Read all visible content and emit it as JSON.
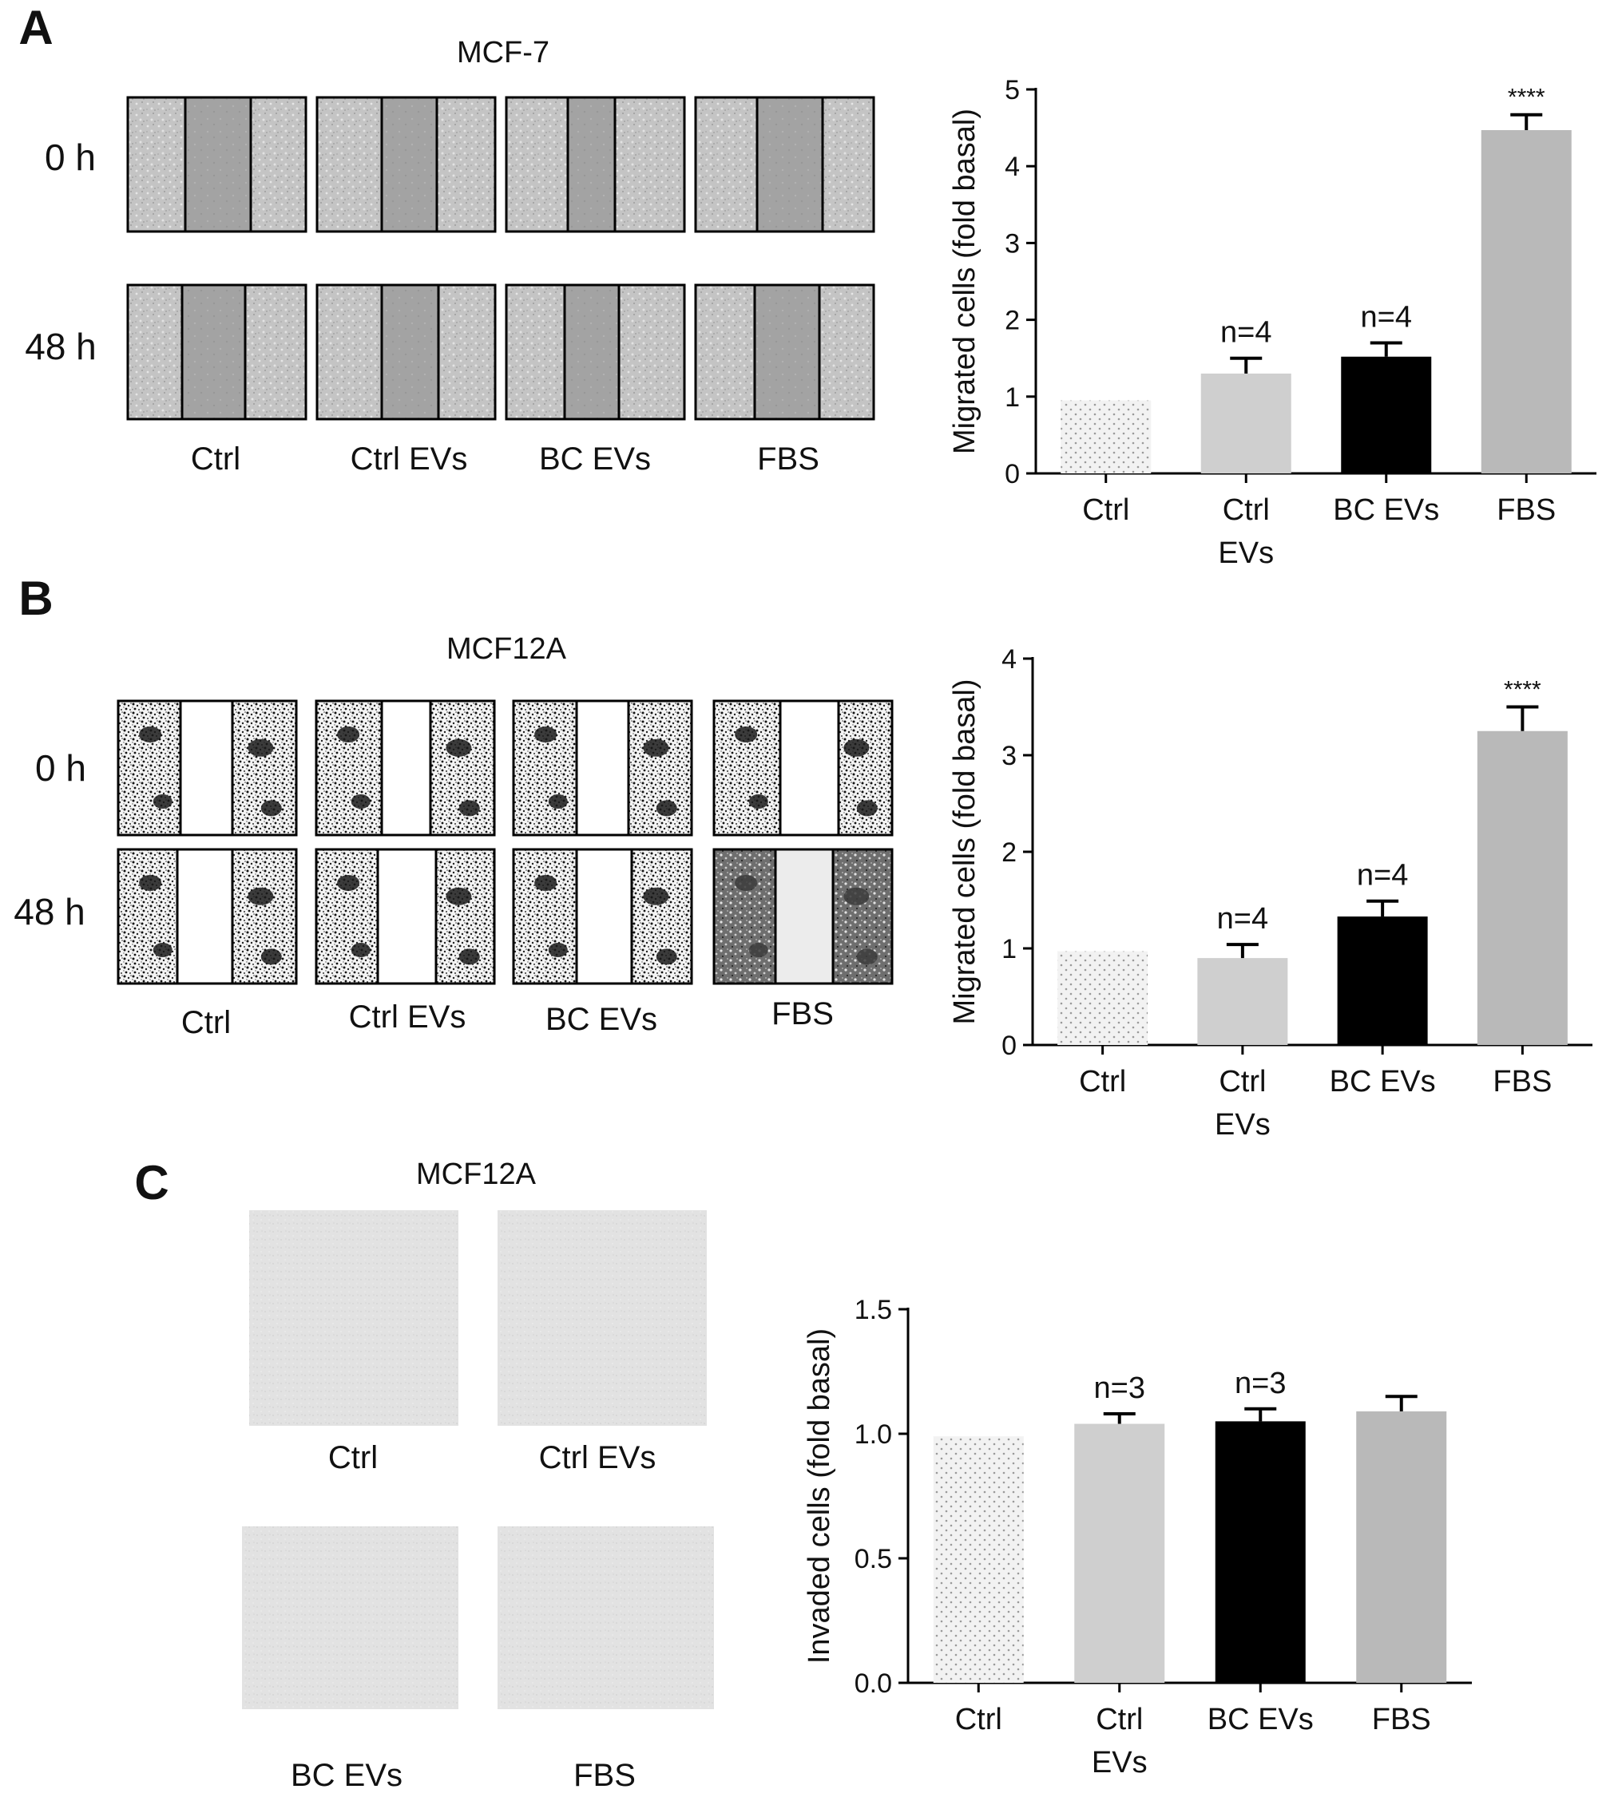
{
  "panels": [
    {
      "letter": "A",
      "cell_line": "MCF-7",
      "row_labels": [
        "0 h",
        "48 h"
      ],
      "columns": [
        "Ctrl",
        "Ctrl EVs",
        "BC EVs",
        "FBS"
      ],
      "style": "phase",
      "chart_data": {
        "type": "bar",
        "categories": [
          "Ctrl",
          "Ctrl EVs",
          "BC EVs",
          "FBS"
        ],
        "category_lines": [
          [
            "Ctrl"
          ],
          [
            "Ctrl",
            "EVs"
          ],
          [
            "BC EVs"
          ],
          [
            "FBS"
          ]
        ],
        "values": [
          0.95,
          1.3,
          1.52,
          4.47
        ],
        "errors": [
          0,
          0.2,
          0.18,
          0.2
        ],
        "annotations": [
          "",
          "n=4",
          "n=4",
          "****"
        ],
        "ylabel": "Migrated cells (fold basal)",
        "ylim": [
          0,
          5
        ],
        "yticks": [
          0,
          1,
          2,
          3,
          4,
          5
        ],
        "ytick_labels": [
          "0",
          "1",
          "2",
          "3",
          "4",
          "5"
        ]
      }
    },
    {
      "letter": "B",
      "cell_line": "MCF12A",
      "row_labels": [
        "0 h",
        "48 h"
      ],
      "columns": [
        "Ctrl",
        "Ctrl EVs",
        "BC EVs",
        "FBS"
      ],
      "style": "binary",
      "chart_data": {
        "type": "bar",
        "categories": [
          "Ctrl",
          "Ctrl EVs",
          "BC EVs",
          "FBS"
        ],
        "category_lines": [
          [
            "Ctrl"
          ],
          [
            "Ctrl",
            "EVs"
          ],
          [
            "BC EVs"
          ],
          [
            "FBS"
          ]
        ],
        "values": [
          0.97,
          0.9,
          1.33,
          3.25
        ],
        "errors": [
          0,
          0.14,
          0.16,
          0.25
        ],
        "annotations": [
          "",
          "n=4",
          "n=4",
          "****"
        ],
        "ylabel": "Migrated cells (fold basal)",
        "ylim": [
          0,
          4
        ],
        "yticks": [
          0,
          1,
          2,
          3,
          4
        ],
        "ytick_labels": [
          "0",
          "1",
          "2",
          "3",
          "4"
        ]
      }
    },
    {
      "letter": "C",
      "cell_line": "MCF12A",
      "columns": [
        "Ctrl",
        "Ctrl EVs",
        "BC EVs",
        "FBS"
      ],
      "style": "flat",
      "chart_data": {
        "type": "bar",
        "categories": [
          "Ctrl",
          "Ctrl EVs",
          "BC EVs",
          "FBS"
        ],
        "category_lines": [
          [
            "Ctrl"
          ],
          [
            "Ctrl",
            "EVs"
          ],
          [
            "BC EVs"
          ],
          [
            "FBS"
          ]
        ],
        "values": [
          0.99,
          1.04,
          1.05,
          1.09
        ],
        "errors": [
          0,
          0.04,
          0.05,
          0.06
        ],
        "annotations": [
          "",
          "n=3",
          "n=3",
          ""
        ],
        "ylabel": "Invaded cells (fold basal)",
        "ylim": [
          0,
          1.5
        ],
        "yticks": [
          0,
          0.5,
          1.0,
          1.5
        ],
        "ytick_labels": [
          "0.0",
          "0.5",
          "1.0",
          "1.5"
        ]
      }
    }
  ],
  "colors": {
    "ctrl_fill": "#f2f2f2",
    "ctrl_dots": "#9a9a9a",
    "ctrl_evs": "#cfcfcf",
    "bc_evs": "#000000",
    "fbs": "#b9b9b9",
    "axis": "#000000",
    "text": "#111111"
  }
}
